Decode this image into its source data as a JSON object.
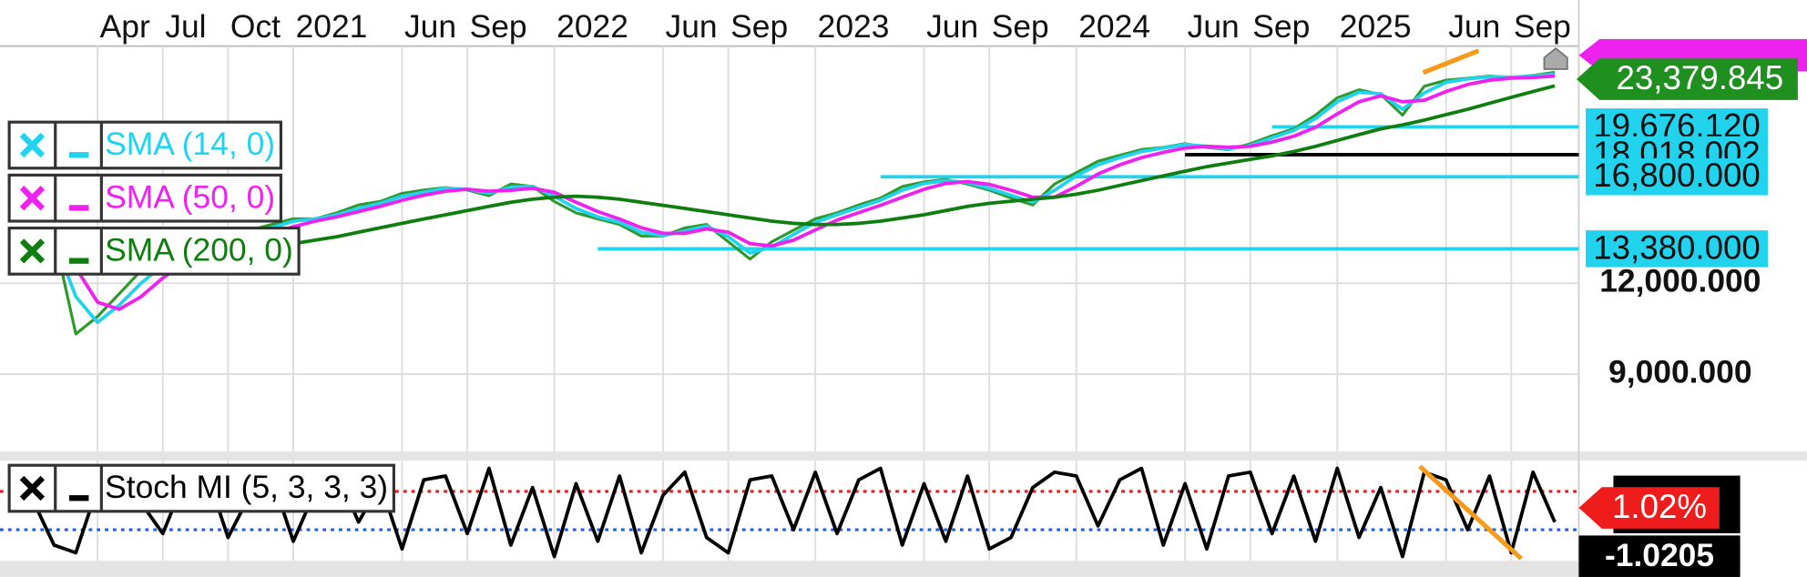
{
  "chart_data": [
    {
      "type": "line",
      "x": [
        "2020-01",
        "2020-02",
        "2020-03",
        "2020-04",
        "2020-05",
        "2020-06",
        "2020-07",
        "2020-08",
        "2020-09",
        "2020-10",
        "2020-11",
        "2020-12",
        "2021-01",
        "2021-02",
        "2021-03",
        "2021-04",
        "2021-05",
        "2021-06",
        "2021-07",
        "2021-08",
        "2021-09",
        "2021-10",
        "2021-11",
        "2021-12",
        "2022-01",
        "2022-02",
        "2022-03",
        "2022-04",
        "2022-05",
        "2022-06",
        "2022-07",
        "2022-08",
        "2022-09",
        "2022-10",
        "2022-11",
        "2022-12",
        "2023-01",
        "2023-02",
        "2023-03",
        "2023-04",
        "2023-05",
        "2023-06",
        "2023-07",
        "2023-08",
        "2023-09",
        "2023-10",
        "2023-11",
        "2023-12",
        "2024-01",
        "2024-02",
        "2024-03",
        "2024-04",
        "2024-05",
        "2024-06",
        "2024-07",
        "2024-08",
        "2024-09",
        "2024-10",
        "2024-11",
        "2024-12",
        "2025-01",
        "2025-02",
        "2025-03",
        "2025-04",
        "2025-05",
        "2025-06",
        "2025-07",
        "2025-08",
        "2025-09",
        "2025-10",
        "2025-11"
      ],
      "xlim": [
        "2019-11",
        "2025-12"
      ],
      "xticks": [
        {
          "value": "2020-04",
          "label": "Apr"
        },
        {
          "value": "2020-07",
          "label": "Jul"
        },
        {
          "value": "2020-10",
          "label": "Oct"
        },
        {
          "value": "2021-01",
          "label": "2021"
        },
        {
          "value": "2021-06",
          "label": "Jun"
        },
        {
          "value": "2021-09",
          "label": "Sep"
        },
        {
          "value": "2022-01",
          "label": "2022"
        },
        {
          "value": "2022-06",
          "label": "Jun"
        },
        {
          "value": "2022-09",
          "label": "Sep"
        },
        {
          "value": "2023-01",
          "label": "2023"
        },
        {
          "value": "2023-06",
          "label": "Jun"
        },
        {
          "value": "2023-09",
          "label": "Sep"
        },
        {
          "value": "2024-01",
          "label": "2024"
        },
        {
          "value": "2024-06",
          "label": "Jun"
        },
        {
          "value": "2024-09",
          "label": "Sep"
        },
        {
          "value": "2025-01",
          "label": "2025"
        },
        {
          "value": "2025-06",
          "label": "Jun"
        },
        {
          "value": "2025-09",
          "label": "Sep"
        }
      ],
      "ylim": [
        7100,
        25400
      ],
      "log_scale": true,
      "yticks": [
        {
          "value": 9000,
          "label": "9,000.000"
        },
        {
          "value": 12000,
          "label": "12,000.000"
        }
      ],
      "grid": true,
      "series": [
        {
          "color": "#2e9a2e",
          "values": [
            13680,
            13930,
            10220,
            10800,
            11610,
            12490,
            12950,
            13430,
            13430,
            13430,
            14190,
            14450,
            14710,
            14710,
            14990,
            15370,
            15540,
            15940,
            16110,
            16240,
            16110,
            15830,
            16420,
            16290,
            15540,
            14990,
            14710,
            14450,
            13930,
            13930,
            14290,
            14450,
            13680,
            12950,
            13680,
            14190,
            14710,
            14990,
            15370,
            15710,
            16290,
            16530,
            16660,
            16420,
            16110,
            15710,
            15370,
            16420,
            17020,
            17650,
            17980,
            18310,
            18440,
            18650,
            18440,
            18310,
            18650,
            19130,
            19550,
            20420,
            21570,
            22120,
            21800,
            20420,
            22370,
            22800,
            22950,
            23100,
            23000,
            23150,
            23379.845
          ]
        },
        {
          "name": "SMA (14, 0)",
          "color": "#22d3ee",
          "values": [
            13600,
            13800,
            11500,
            10600,
            11200,
            12000,
            12700,
            13200,
            13400,
            13430,
            13900,
            14300,
            14600,
            14700,
            14900,
            15200,
            15450,
            15800,
            16000,
            16200,
            16150,
            15950,
            16250,
            16300,
            15800,
            15200,
            14800,
            14550,
            14100,
            13950,
            14150,
            14380,
            13900,
            13200,
            13450,
            14000,
            14550,
            14900,
            15250,
            15600,
            16100,
            16450,
            16600,
            16500,
            16200,
            15850,
            15500,
            16100,
            16850,
            17450,
            17850,
            18200,
            18400,
            18600,
            18500,
            18350,
            18550,
            19000,
            19450,
            20200,
            21300,
            21950,
            21850,
            20800,
            21900,
            22650,
            22900,
            23050,
            23020,
            23100,
            23250
          ]
        },
        {
          "name": "SMA (50, 0)",
          "color": "#ee22ee",
          "values": [
            13300,
            13600,
            12600,
            11300,
            11050,
            11500,
            12200,
            12800,
            13200,
            13350,
            13600,
            14000,
            14350,
            14600,
            14800,
            15050,
            15300,
            15600,
            15850,
            16050,
            16150,
            16050,
            16100,
            16200,
            16000,
            15500,
            15050,
            14700,
            14300,
            14050,
            14050,
            14250,
            14100,
            13600,
            13500,
            13750,
            14200,
            14650,
            15000,
            15350,
            15750,
            16150,
            16450,
            16550,
            16400,
            16100,
            15750,
            15750,
            16300,
            16950,
            17450,
            17850,
            18150,
            18400,
            18500,
            18450,
            18500,
            18750,
            19100,
            19650,
            20500,
            21300,
            21700,
            21300,
            21400,
            22000,
            22500,
            22800,
            22950,
            23000,
            23100
          ]
        },
        {
          "name": "SMA (200, 0)",
          "color": "#0f7d0f",
          "values": [
            13200,
            13250,
            13200,
            13100,
            13000,
            12950,
            12950,
            13000,
            13100,
            13200,
            13300,
            13450,
            13600,
            13750,
            13900,
            14100,
            14300,
            14500,
            14700,
            14900,
            15100,
            15300,
            15500,
            15650,
            15750,
            15800,
            15750,
            15650,
            15500,
            15350,
            15200,
            15050,
            14900,
            14750,
            14600,
            14500,
            14450,
            14450,
            14500,
            14600,
            14750,
            14900,
            15100,
            15300,
            15450,
            15550,
            15650,
            15750,
            15900,
            16100,
            16350,
            16600,
            16850,
            17100,
            17350,
            17550,
            17750,
            17950,
            18200,
            18500,
            18850,
            19200,
            19550,
            19800,
            20100,
            20450,
            20800,
            21200,
            21600,
            22000,
            22400
          ]
        }
      ],
      "hlines": [
        {
          "value": 19676.12,
          "label": "19,676.120",
          "color": "#22d3ee",
          "from": "2024-10"
        },
        {
          "value": 18018.002,
          "label": "18,018.002",
          "color": "#000000",
          "from": "2024-06"
        },
        {
          "value": 16800,
          "label": "16,800.000",
          "color": "#22d3ee",
          "from": "2023-04"
        },
        {
          "value": 13380,
          "label": "13,380.000",
          "color": "#22d3ee",
          "from": "2022-03"
        }
      ],
      "price_tag": {
        "value": 23379.845,
        "label": "23,379.845",
        "color": "#1f8f1f"
      }
    },
    {
      "type": "line",
      "x": [
        "2020-01",
        "2020-02",
        "2020-03",
        "2020-04",
        "2020-05",
        "2020-06",
        "2020-07",
        "2020-08",
        "2020-09",
        "2020-10",
        "2020-11",
        "2020-12",
        "2021-01",
        "2021-02",
        "2021-03",
        "2021-04",
        "2021-05",
        "2021-06",
        "2021-07",
        "2021-08",
        "2021-09",
        "2021-10",
        "2021-11",
        "2021-12",
        "2022-01",
        "2022-02",
        "2022-03",
        "2022-04",
        "2022-05",
        "2022-06",
        "2022-07",
        "2022-08",
        "2022-09",
        "2022-10",
        "2022-11",
        "2022-12",
        "2023-01",
        "2023-02",
        "2023-03",
        "2023-04",
        "2023-05",
        "2023-06",
        "2023-07",
        "2023-08",
        "2023-09",
        "2023-10",
        "2023-11",
        "2023-12",
        "2024-01",
        "2024-02",
        "2024-03",
        "2024-04",
        "2024-05",
        "2024-06",
        "2024-07",
        "2024-08",
        "2024-09",
        "2024-10",
        "2024-11",
        "2024-12",
        "2025-01",
        "2025-02",
        "2025-03",
        "2025-04",
        "2025-05",
        "2025-06",
        "2025-07",
        "2025-08",
        "2025-09",
        "2025-10",
        "2025-11"
      ],
      "xlim": [
        "2019-11",
        "2025-12"
      ],
      "ylim": [
        -1.4,
        1.3
      ],
      "series": [
        {
          "name": "Stoch MI (5, 3, 3, 3)",
          "color": "#000000",
          "values": [
            0.3,
            -0.9,
            -1.1,
            0.6,
            0.9,
            0.2,
            -0.6,
            0.8,
            1.0,
            -0.7,
            0.4,
            0.9,
            -0.8,
            0.5,
            1.0,
            -0.3,
            0.7,
            -1.0,
            0.8,
            0.9,
            -0.6,
            1.1,
            -0.9,
            0.6,
            -1.2,
            0.7,
            -0.8,
            0.9,
            -1.1,
            0.4,
            1.0,
            -0.7,
            -1.1,
            0.8,
            0.9,
            -0.5,
            1.0,
            -0.6,
            0.8,
            1.1,
            -0.9,
            0.7,
            -0.8,
            0.9,
            -1.0,
            -0.7,
            0.6,
            1.0,
            0.9,
            -0.4,
            0.8,
            1.1,
            -0.9,
            0.7,
            -1.0,
            0.9,
            1.0,
            -0.6,
            0.9,
            -0.8,
            1.1,
            -0.7,
            0.6,
            -1.2,
            1.0,
            0.8,
            -0.5,
            0.9,
            -1.1,
            1.0,
            -0.3
          ]
        }
      ],
      "levels": [
        {
          "value": 0.5,
          "color": "#e02020"
        },
        {
          "value": -0.5,
          "color": "#2060e0"
        }
      ],
      "tags": [
        "1.02%",
        "-1.0205"
      ]
    }
  ]
}
